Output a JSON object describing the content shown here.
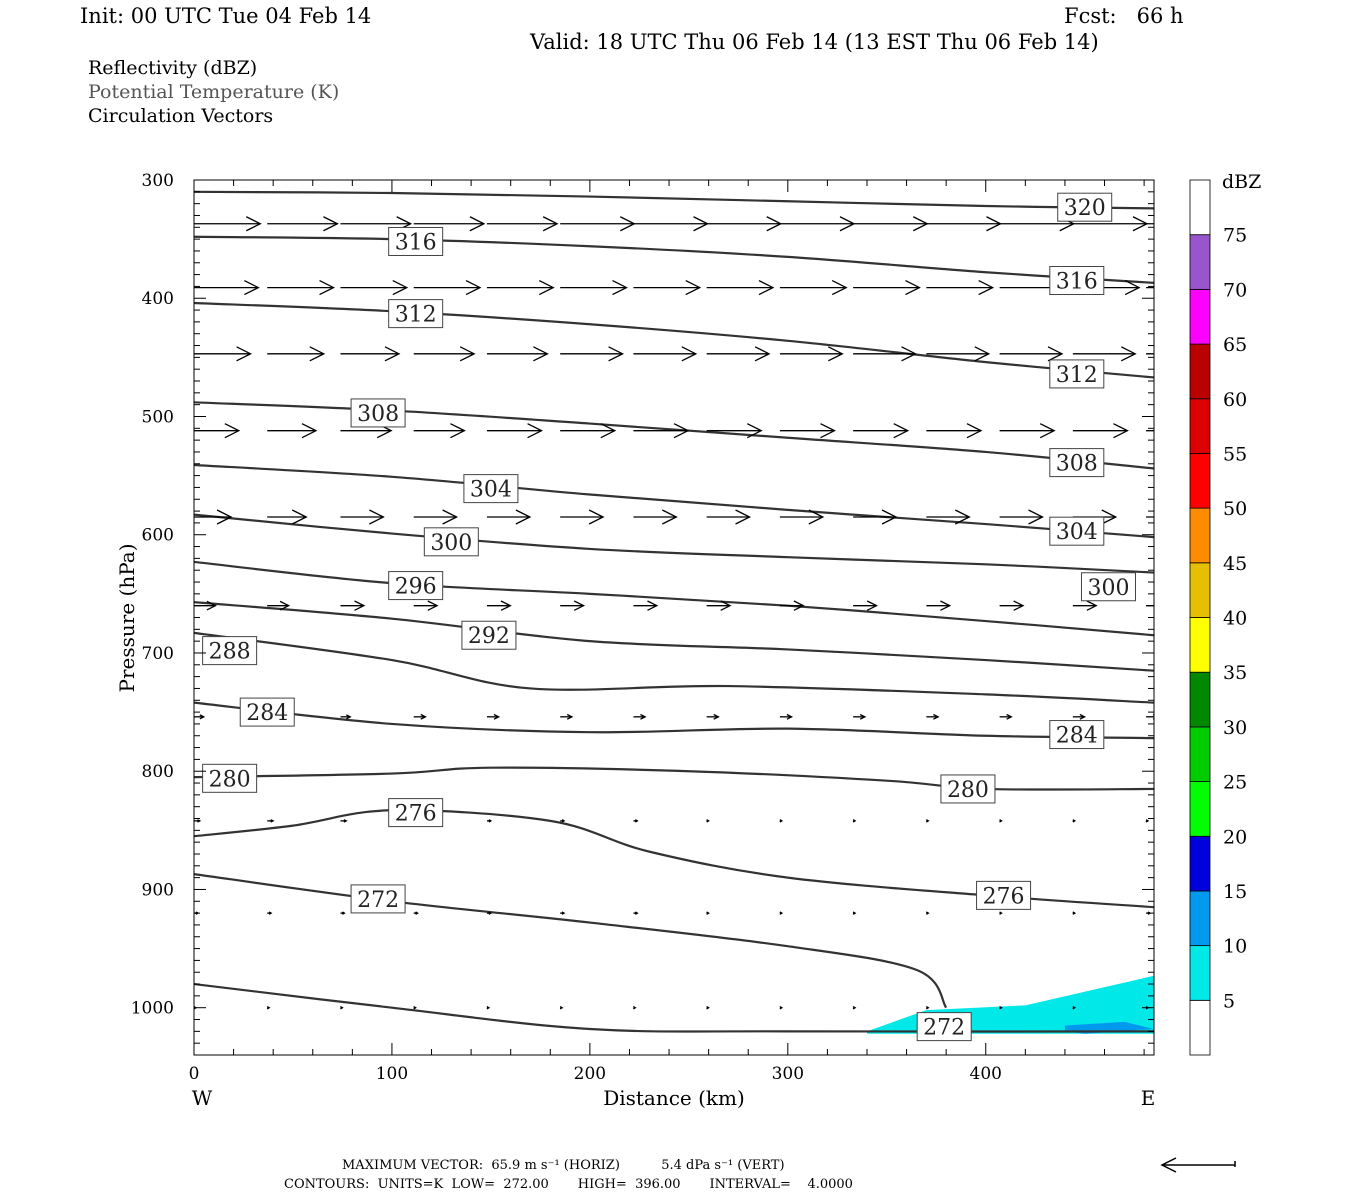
{
  "header": {
    "init": "Init: 00 UTC Tue 04 Feb 14",
    "fcst": "Fcst:   66 h",
    "valid": "Valid: 18 UTC Thu 06 Feb 14 (13 EST Thu 06 Feb 14)"
  },
  "legend": {
    "line1": "Reflectivity (dBZ)",
    "line2": "Potential Temperature (K)",
    "line3": "Circulation Vectors"
  },
  "footer": {
    "line1": "MAXIMUM VECTOR:  65.9 m s⁻¹ (HORIZ)          5.4 dPa s⁻¹ (VERT)",
    "line2": "CONTOURS:  UNITS=K  LOW=  272.00       HIGH=  396.00       INTERVAL=    4.0000"
  },
  "chart_data": {
    "type": "cross-section",
    "xlabel": "Distance (km)",
    "ylabel": "Pressure (hPa)",
    "x_left_label": "W",
    "x_right_label": "E",
    "xlim": [
      0,
      485
    ],
    "ylim": [
      1040,
      300
    ],
    "x_ticks": [
      0,
      100,
      200,
      300,
      400
    ],
    "y_ticks": [
      300,
      400,
      500,
      600,
      700,
      800,
      900,
      1000
    ],
    "colorbar": {
      "title": "dBZ",
      "levels": [
        5,
        10,
        15,
        20,
        25,
        30,
        35,
        40,
        45,
        50,
        55,
        60,
        65,
        70,
        75
      ],
      "colors": [
        "#ffffff",
        "#00e8e8",
        "#0099ee",
        "#0000dd",
        "#00ff00",
        "#00cc00",
        "#008800",
        "#ffff00",
        "#e6c000",
        "#ff8c00",
        "#ff0000",
        "#dd0000",
        "#bb0000",
        "#ff00ff",
        "#9955cc",
        "#ffffff"
      ]
    },
    "contours": [
      {
        "value": "320",
        "points": [
          [
            0,
            310
          ],
          [
            100,
            311
          ],
          [
            200,
            314
          ],
          [
            300,
            318
          ],
          [
            400,
            322
          ],
          [
            485,
            324
          ]
        ]
      },
      {
        "value": "316",
        "points": [
          [
            0,
            348
          ],
          [
            100,
            350
          ],
          [
            200,
            356
          ],
          [
            300,
            365
          ],
          [
            400,
            378
          ],
          [
            485,
            387
          ]
        ]
      },
      {
        "value": "312",
        "points": [
          [
            0,
            404
          ],
          [
            100,
            411
          ],
          [
            200,
            422
          ],
          [
            300,
            436
          ],
          [
            400,
            454
          ],
          [
            485,
            467
          ]
        ]
      },
      {
        "value": "308",
        "points": [
          [
            0,
            488
          ],
          [
            100,
            495
          ],
          [
            200,
            506
          ],
          [
            300,
            518
          ],
          [
            400,
            530
          ],
          [
            485,
            544
          ]
        ]
      },
      {
        "value": "304",
        "points": [
          [
            0,
            541
          ],
          [
            100,
            551
          ],
          [
            200,
            566
          ],
          [
            300,
            579
          ],
          [
            400,
            591
          ],
          [
            485,
            602
          ]
        ]
      },
      {
        "value": "300",
        "points": [
          [
            0,
            583
          ],
          [
            100,
            599
          ],
          [
            200,
            612
          ],
          [
            300,
            619
          ],
          [
            400,
            625
          ],
          [
            485,
            632
          ]
        ]
      },
      {
        "value": "296",
        "points": [
          [
            0,
            623
          ],
          [
            100,
            641
          ],
          [
            200,
            650
          ],
          [
            300,
            660
          ],
          [
            400,
            673
          ],
          [
            485,
            685
          ]
        ]
      },
      {
        "value": "292",
        "points": [
          [
            0,
            657
          ],
          [
            100,
            671
          ],
          [
            200,
            690
          ],
          [
            300,
            697
          ],
          [
            400,
            706
          ],
          [
            485,
            715
          ]
        ]
      },
      {
        "value": "288",
        "points": [
          [
            0,
            683
          ],
          [
            100,
            706
          ],
          [
            170,
            730
          ],
          [
            270,
            728
          ],
          [
            400,
            735
          ],
          [
            485,
            742
          ]
        ]
      },
      {
        "value": "284",
        "points": [
          [
            0,
            742
          ],
          [
            100,
            760
          ],
          [
            200,
            767
          ],
          [
            300,
            764
          ],
          [
            400,
            770
          ],
          [
            485,
            772
          ]
        ]
      },
      {
        "value": "280",
        "points": [
          [
            0,
            805
          ],
          [
            100,
            802
          ],
          [
            150,
            797
          ],
          [
            250,
            800
          ],
          [
            350,
            808
          ],
          [
            400,
            815
          ],
          [
            485,
            815
          ]
        ]
      },
      {
        "value": "276",
        "points": [
          [
            0,
            855
          ],
          [
            50,
            846
          ],
          [
            100,
            833
          ],
          [
            180,
            842
          ],
          [
            230,
            868
          ],
          [
            300,
            890
          ],
          [
            400,
            905
          ],
          [
            485,
            915
          ]
        ]
      },
      {
        "value": "272",
        "points": [
          [
            0,
            887
          ],
          [
            100,
            910
          ],
          [
            200,
            928
          ],
          [
            300,
            948
          ],
          [
            365,
            968
          ],
          [
            380,
            1000
          ]
        ]
      },
      {
        "value": "272",
        "points": [
          [
            0,
            980
          ],
          [
            100,
            1000
          ],
          [
            200,
            1018
          ],
          [
            300,
            1020
          ],
          [
            485,
            1020
          ]
        ]
      }
    ],
    "contour_labels": [
      {
        "value": "320",
        "x": 450,
        "y": 323
      },
      {
        "value": "316",
        "x": 112,
        "y": 352
      },
      {
        "value": "316",
        "x": 446,
        "y": 385
      },
      {
        "value": "312",
        "x": 112,
        "y": 413
      },
      {
        "value": "312",
        "x": 446,
        "y": 464
      },
      {
        "value": "308",
        "x": 93,
        "y": 497
      },
      {
        "value": "308",
        "x": 446,
        "y": 539
      },
      {
        "value": "304",
        "x": 150,
        "y": 561
      },
      {
        "value": "304",
        "x": 446,
        "y": 597
      },
      {
        "value": "300",
        "x": 130,
        "y": 606
      },
      {
        "value": "300",
        "x": 462,
        "y": 644
      },
      {
        "value": "296",
        "x": 112,
        "y": 643
      },
      {
        "value": "292",
        "x": 149,
        "y": 685
      },
      {
        "value": "288",
        "x": 18,
        "y": 698
      },
      {
        "value": "284",
        "x": 37,
        "y": 750
      },
      {
        "value": "284",
        "x": 446,
        "y": 769
      },
      {
        "value": "280",
        "x": 18,
        "y": 806
      },
      {
        "value": "280",
        "x": 391,
        "y": 815
      },
      {
        "value": "276",
        "x": 112,
        "y": 835
      },
      {
        "value": "276",
        "x": 409,
        "y": 905
      },
      {
        "value": "272",
        "x": 93,
        "y": 908
      },
      {
        "value": "272",
        "x": 379,
        "y": 1016
      }
    ],
    "vector_rows": [
      {
        "p": 337,
        "u": [
          34,
          36,
          36,
          36,
          36,
          38,
          38,
          38,
          38,
          38,
          38,
          38,
          38,
          38
        ]
      },
      {
        "p": 391,
        "u": [
          33,
          34,
          34,
          34,
          34,
          34,
          34,
          34,
          34,
          34,
          34,
          34,
          34,
          34
        ]
      },
      {
        "p": 447,
        "u": [
          29,
          29,
          30,
          31,
          31,
          32,
          32,
          32,
          32,
          32,
          32,
          32,
          32,
          32
        ]
      },
      {
        "p": 512,
        "u": [
          23,
          25,
          26,
          26,
          28,
          28,
          28,
          28,
          28,
          28,
          28,
          28,
          28,
          28
        ]
      },
      {
        "p": 585,
        "u": [
          19,
          20,
          22,
          22,
          22,
          22,
          22,
          22,
          22,
          22,
          22,
          22,
          22,
          22
        ]
      },
      {
        "p": 660,
        "u": [
          11,
          11,
          12,
          12,
          12,
          12,
          12,
          12,
          12,
          12,
          12,
          12,
          12,
          12
        ]
      },
      {
        "p": 754,
        "u": [
          5,
          5,
          5,
          6,
          6,
          6,
          6,
          6,
          6,
          6,
          6,
          6,
          6,
          6
        ]
      },
      {
        "p": 842,
        "u": [
          3,
          3,
          3,
          3,
          2,
          2,
          2,
          1,
          1,
          1,
          1,
          1,
          1,
          1
        ]
      },
      {
        "p": 920,
        "u": [
          2,
          2,
          2,
          2,
          2,
          2,
          2,
          1,
          1,
          1,
          1,
          1,
          1,
          2
        ]
      },
      {
        "p": 1000,
        "u": [
          1,
          1,
          1,
          1,
          1,
          1,
          1,
          1,
          1,
          1,
          1,
          1,
          1,
          1
        ]
      }
    ],
    "reflectivity_areas": [
      {
        "dbz_min": 5,
        "dbz_max": 10,
        "points": [
          [
            340,
            1020
          ],
          [
            370,
            1002
          ],
          [
            420,
            998
          ],
          [
            485,
            973
          ],
          [
            485,
            1022
          ],
          [
            340,
            1022
          ]
        ]
      },
      {
        "dbz_min": 10,
        "dbz_max": 15,
        "points": [
          [
            440,
            1015
          ],
          [
            470,
            1012
          ],
          [
            485,
            1018
          ],
          [
            450,
            1022
          ],
          [
            440,
            1020
          ]
        ]
      }
    ]
  }
}
